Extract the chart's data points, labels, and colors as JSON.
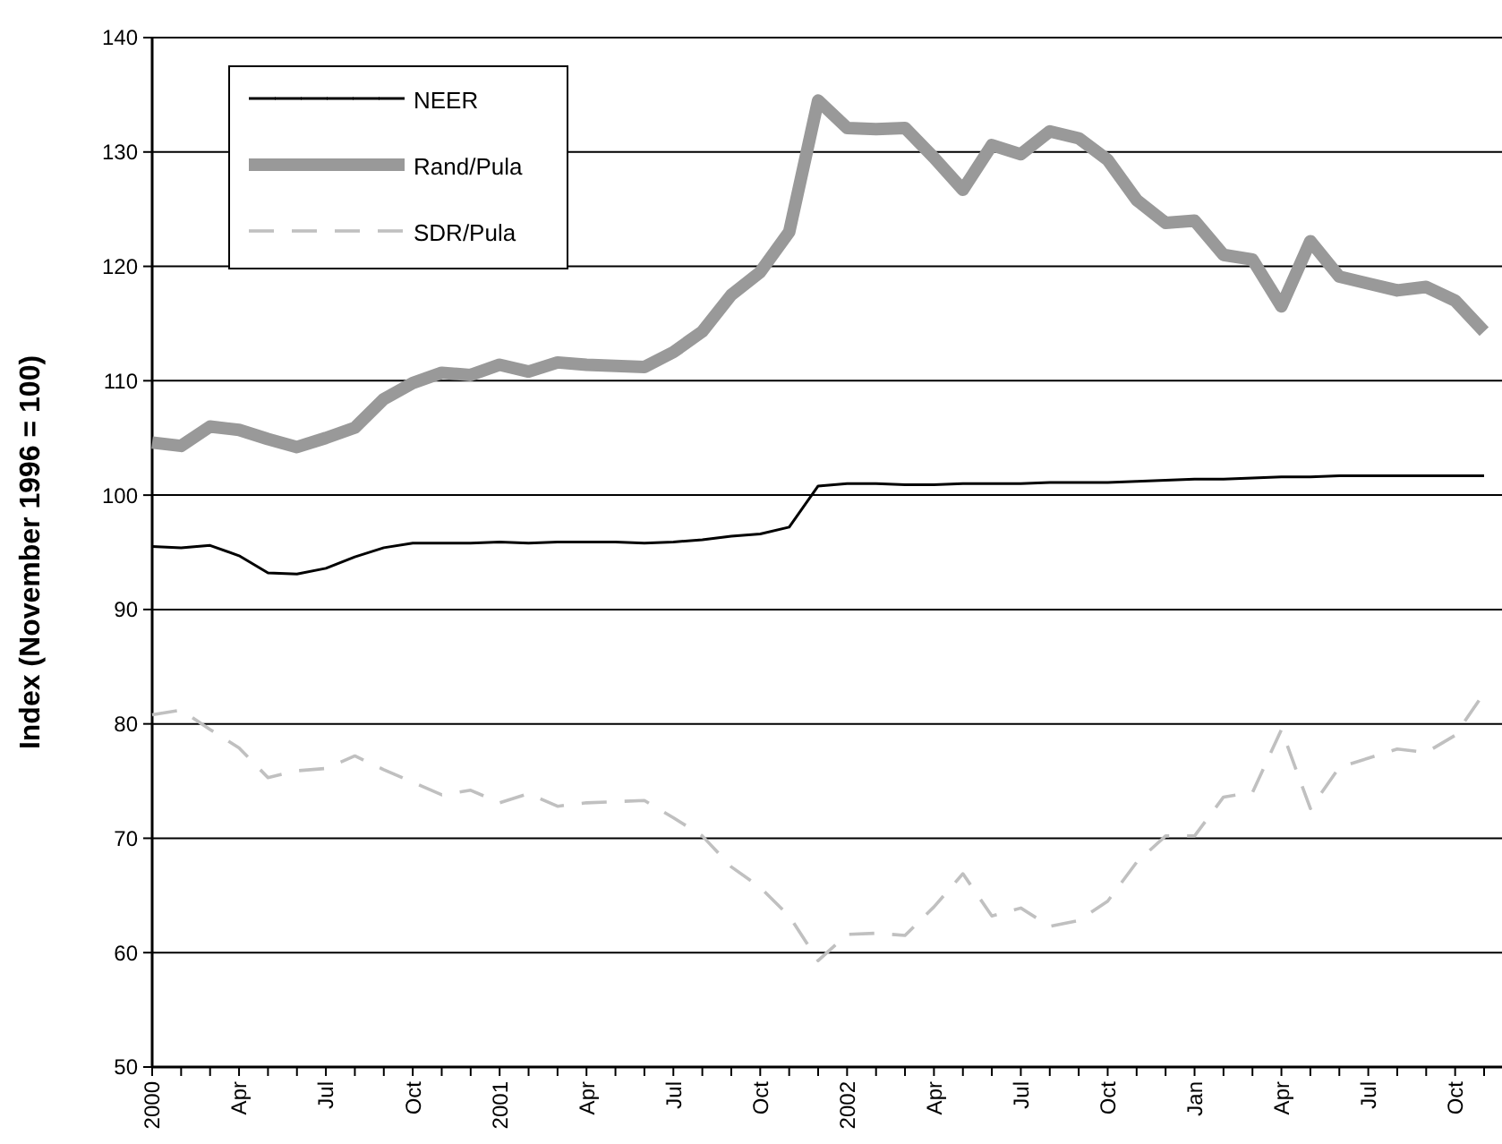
{
  "chart_data": {
    "type": "line",
    "ylabel": "Index (November 1996 = 100)",
    "categories": [
      "2000",
      null,
      null,
      "Apr",
      null,
      null,
      "Jul",
      null,
      null,
      "Oct",
      null,
      null,
      "2001",
      null,
      null,
      "Apr",
      null,
      null,
      "Jul",
      null,
      null,
      "Oct",
      null,
      null,
      "2002",
      null,
      null,
      "Apr",
      null,
      null,
      "Jul",
      null,
      null,
      "Oct",
      null,
      null,
      "Jan",
      null,
      null,
      "Apr",
      null,
      null,
      "Jul",
      null,
      null,
      "Oct",
      null
    ],
    "series": [
      {
        "name": "NEER",
        "color": "#000000",
        "line_style": "solid",
        "values": [
          95.5,
          95.4,
          95.6,
          94.7,
          93.2,
          93.1,
          93.6,
          94.6,
          95.4,
          95.8,
          95.8,
          95.8,
          95.9,
          95.8,
          95.9,
          95.9,
          95.9,
          95.8,
          95.9,
          96.1,
          96.4,
          96.6,
          97.2,
          100.8,
          101.0,
          101.0,
          100.9,
          100.9,
          101.0,
          101.0,
          101.0,
          101.1,
          101.1,
          101.1,
          101.2,
          101.3,
          101.4,
          101.4,
          101.5,
          101.6,
          101.6,
          101.7,
          101.7,
          101.7,
          101.7,
          101.7,
          101.7
        ]
      },
      {
        "name": "Rand/Pula",
        "color": "#999999",
        "line_style": "solid",
        "values": [
          104.6,
          104.3,
          106.0,
          105.7,
          104.9,
          104.2,
          105.0,
          105.9,
          108.4,
          109.8,
          110.7,
          110.5,
          111.4,
          110.8,
          111.6,
          111.4,
          111.3,
          111.2,
          112.5,
          114.3,
          117.5,
          119.5,
          123.0,
          134.5,
          132.1,
          132.0,
          132.1,
          129.5,
          126.7,
          130.6,
          129.8,
          131.8,
          131.2,
          129.3,
          125.8,
          123.8,
          124.0,
          121.0,
          120.6,
          116.5,
          122.2,
          119.1,
          118.5,
          117.9,
          118.2,
          117.0,
          114.3
        ]
      },
      {
        "name": "SDR/Pula",
        "color": "#c0c0c0",
        "line_style": "dashed",
        "values": [
          80.8,
          81.2,
          79.5,
          77.9,
          75.3,
          75.9,
          76.1,
          77.2,
          76.0,
          74.9,
          73.8,
          74.2,
          73.1,
          73.9,
          72.8,
          73.1,
          73.2,
          73.3,
          71.8,
          70.2,
          67.5,
          65.7,
          63.2,
          59.3,
          61.6,
          61.7,
          61.5,
          64.0,
          66.9,
          63.2,
          63.9,
          62.3,
          62.8,
          64.5,
          67.9,
          70.2,
          70.2,
          73.6,
          74.0,
          79.5,
          72.6,
          76.2,
          77.0,
          77.8,
          77.5,
          79.0,
          82.7
        ]
      }
    ],
    "ylim": [
      50,
      140
    ],
    "yticks": [
      50,
      60,
      70,
      80,
      90,
      100,
      110,
      120,
      130,
      140
    ],
    "grid": "y",
    "legend": "top left",
    "marker": "none"
  }
}
